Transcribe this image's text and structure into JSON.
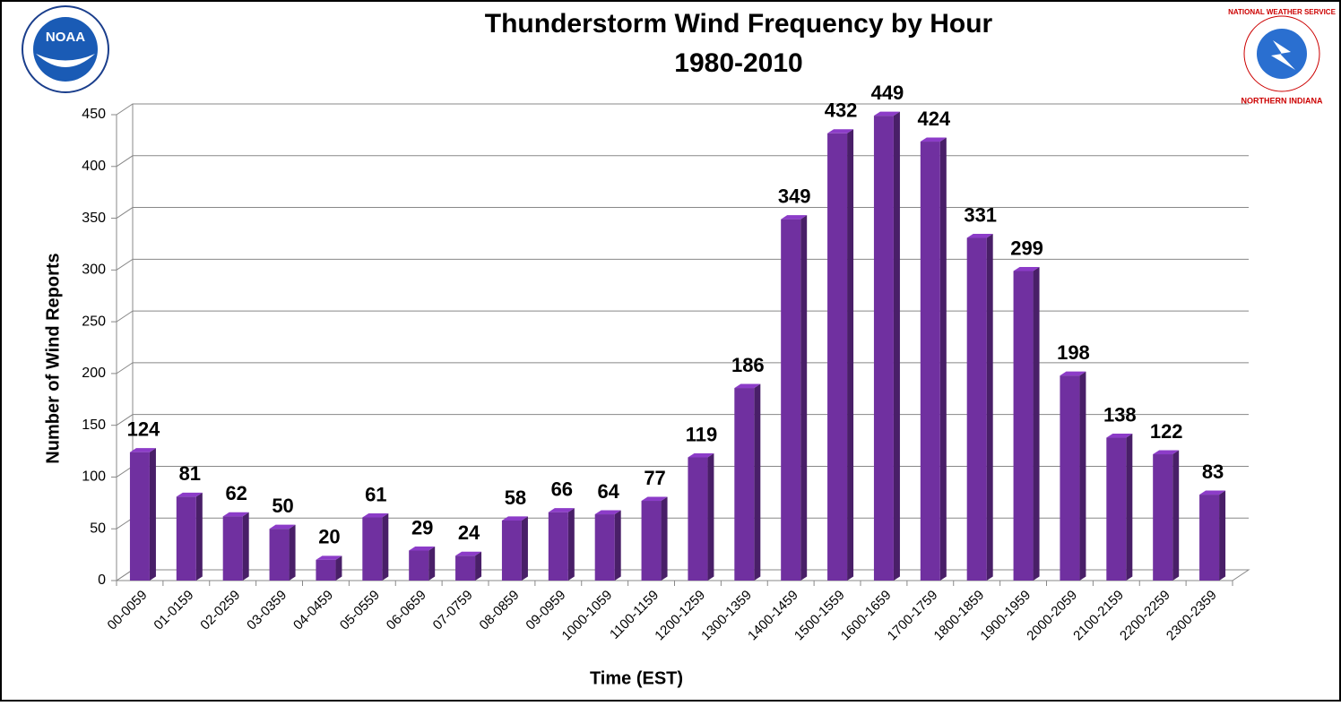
{
  "chart_data": {
    "type": "bar3d",
    "title": "Thunderstorm Wind Frequency by Hour",
    "subtitle": "1980-2010",
    "x_label": "Time (EST)",
    "y_label": "Number of Wind Reports",
    "categories": [
      "00-0059",
      "01-0159",
      "02-0259",
      "03-0359",
      "04-0459",
      "05-0559",
      "06-0659",
      "07-0759",
      "08-0859",
      "09-0959",
      "1000-1059",
      "1100-1159",
      "1200-1259",
      "1300-1359",
      "1400-1459",
      "1500-1559",
      "1600-1659",
      "1700-1759",
      "1800-1859",
      "1900-1959",
      "2000-2059",
      "2100-2159",
      "2200-2259",
      "2300-2359"
    ],
    "values": [
      124,
      81,
      62,
      50,
      20,
      61,
      29,
      24,
      58,
      66,
      64,
      77,
      119,
      186,
      349,
      432,
      449,
      424,
      331,
      299,
      198,
      138,
      122,
      83
    ],
    "color": "#7030a0",
    "ylim": [
      0,
      450
    ],
    "yticks": [
      0,
      50,
      100,
      150,
      200,
      250,
      300,
      350,
      400,
      450
    ],
    "grid": true
  },
  "logos": {
    "left": "NOAA",
    "right": "NATIONAL WEATHER SERVICE",
    "right_caption": "NORTHERN INDIANA"
  }
}
